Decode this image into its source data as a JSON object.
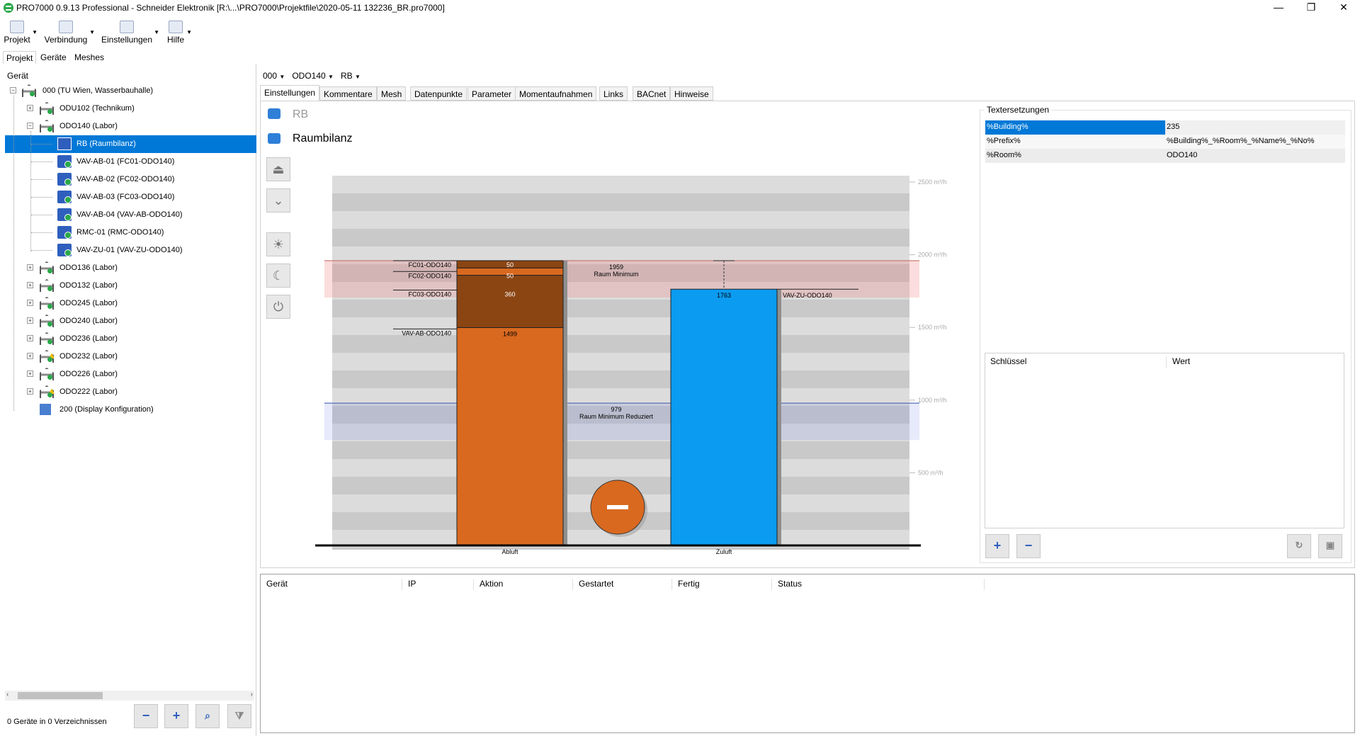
{
  "window": {
    "title": "PRO7000 0.9.13 Professional - Schneider Elektronik [R:\\...\\PRO7000\\Projektfile\\2020-05-11 132236_BR.pro7000]",
    "minimize": "—",
    "restore": "❐",
    "close": "✕"
  },
  "menu": [
    {
      "label": "Projekt",
      "icon": "project-icon"
    },
    {
      "label": "Verbindung",
      "icon": "connection-icon"
    },
    {
      "label": "Einstellungen",
      "icon": "settings-user-icon"
    },
    {
      "label": "Hilfe",
      "icon": "help-icon"
    }
  ],
  "left_tabs": [
    "Projekt",
    "Geräte",
    "Meshes"
  ],
  "tree": {
    "header": "Gerät",
    "items": [
      {
        "label": "000 (TU Wien, Wasserbauhalle)",
        "level": 0,
        "icon": "building-icon",
        "exp": "−"
      },
      {
        "label": "ODU102 (Technikum)",
        "level": 1,
        "icon": "room-icon",
        "exp": "+"
      },
      {
        "label": "ODO140 (Labor)",
        "level": 1,
        "icon": "room-icon",
        "exp": "−"
      },
      {
        "label": "RB (Raumbilanz)",
        "level": 2,
        "icon": "room-balance-icon",
        "selected": true
      },
      {
        "label": "VAV-AB-01 (FC01-ODO140)",
        "level": 2,
        "icon": "vav-icon"
      },
      {
        "label": "VAV-AB-02 (FC02-ODO140)",
        "level": 2,
        "icon": "vav-icon"
      },
      {
        "label": "VAV-AB-03 (FC03-ODO140)",
        "level": 2,
        "icon": "vav-icon"
      },
      {
        "label": "VAV-AB-04 (VAV-AB-ODO140)",
        "level": 2,
        "icon": "vav-icon"
      },
      {
        "label": "RMC-01 (RMC-ODO140)",
        "level": 2,
        "icon": "vav-icon"
      },
      {
        "label": "VAV-ZU-01 (VAV-ZU-ODO140)",
        "level": 2,
        "icon": "vav-icon"
      },
      {
        "label": "ODO136 (Labor)",
        "level": 1,
        "icon": "room-icon",
        "exp": "+"
      },
      {
        "label": "ODO132 (Labor)",
        "level": 1,
        "icon": "room-icon",
        "exp": "+"
      },
      {
        "label": "ODO245 (Labor)",
        "level": 1,
        "icon": "room-icon",
        "exp": "+"
      },
      {
        "label": "ODO240 (Labor)",
        "level": 1,
        "icon": "room-icon",
        "exp": "+"
      },
      {
        "label": "ODO236 (Labor)",
        "level": 1,
        "icon": "room-icon",
        "exp": "+"
      },
      {
        "label": "ODO232 (Labor)",
        "level": 1,
        "icon": "room-icon",
        "exp": "+",
        "warn": true
      },
      {
        "label": "ODO226 (Labor)",
        "level": 1,
        "icon": "room-icon",
        "exp": "+"
      },
      {
        "label": "ODO222 (Labor)",
        "level": 1,
        "icon": "room-icon",
        "exp": "+",
        "warn": true
      },
      {
        "label": "200 (Display Konfiguration)",
        "level": 1,
        "icon": "display-icon"
      }
    ]
  },
  "left_footer": {
    "status": "0 Geräte in 0 Verzeichnissen",
    "buttons": [
      "remove",
      "add",
      "search",
      "filter"
    ]
  },
  "breadcrumb": [
    "000",
    "ODO140",
    "RB"
  ],
  "tabs": [
    "Einstellungen",
    "Kommentare",
    "Mesh",
    "Datenpunkte",
    "Parameter",
    "Momentaufnahmen",
    "Links",
    "BACnet",
    "Hinweise"
  ],
  "device": {
    "short": "RB",
    "name": "Raumbilanz"
  },
  "chart_data": {
    "type": "bar",
    "ylim": [
      0,
      2500
    ],
    "y_ticks": [
      {
        "value": 500,
        "label": "500 m³/h"
      },
      {
        "value": 1000,
        "label": "1000 m³/h"
      },
      {
        "value": 1500,
        "label": "1500 m³/h"
      },
      {
        "value": 2000,
        "label": "2000 m³/h"
      },
      {
        "value": 2500,
        "label": "2500 m³/h"
      }
    ],
    "bars": [
      {
        "category": "Abluft",
        "segments": [
          {
            "name": "VAV-AB-ODO140",
            "value": 1499,
            "color": "#d9691f"
          },
          {
            "name": "FC03-ODO140",
            "value": 360,
            "color": "#8b4513"
          },
          {
            "name": "FC02-ODO140",
            "value": 50,
            "color": "#d9691f"
          },
          {
            "name": "FC01-ODO140",
            "value": 50,
            "color": "#8b4513"
          }
        ]
      },
      {
        "category": "Zuluft",
        "segments": [
          {
            "name": "VAV-ZU-ODO140",
            "value": 1763,
            "color": "#0b9bf0"
          }
        ]
      }
    ],
    "reference_lines": [
      {
        "value": 1959,
        "label": "Raum Minimum",
        "color": "#c97a7a"
      },
      {
        "value": 979,
        "label": "Raum Minimum Reduziert",
        "color": "#5a6fb5"
      }
    ],
    "balance_indicator": "−"
  },
  "textersetzungen": {
    "title": "Textersetzungen",
    "rows": [
      {
        "key": "%Building%",
        "value": "235",
        "selected": true
      },
      {
        "key": "%Prefix%",
        "value": "%Building%_%Room%_%Name%_%No%"
      },
      {
        "key": "%Room%",
        "value": "ODO140"
      }
    ],
    "grid_headers": [
      "Schlüssel",
      "Wert"
    ]
  },
  "bottom_grid": {
    "headers": [
      "Gerät",
      "IP",
      "Aktion",
      "Gestartet",
      "Fertig",
      "Status"
    ]
  },
  "colors": {
    "selection": "#0078d7",
    "abluft": "#d9691f",
    "abluft_dark": "#8b4513",
    "zuluft": "#0b9bf0"
  }
}
